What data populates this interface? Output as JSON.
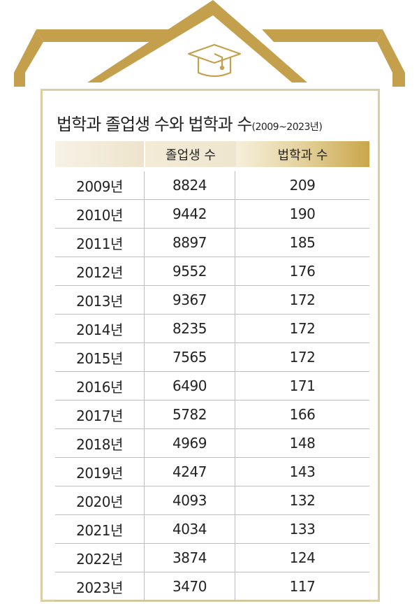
{
  "title": {
    "main": "법학과 졸업생 수와 법학과 수",
    "range": "(2009~2023년)"
  },
  "colors": {
    "gold": "#c4a04d",
    "card_border": "#d9cfa6",
    "row_line": "#bdbdbd"
  },
  "icons": {
    "roof": "house-roof-icon",
    "cap": "graduation-cap-icon"
  },
  "table": {
    "headers": [
      "",
      "졸업생 수",
      "법학과 수"
    ],
    "rows": [
      [
        "2009년",
        "8824",
        "209"
      ],
      [
        "2010년",
        "9442",
        "190"
      ],
      [
        "2011년",
        "8897",
        "185"
      ],
      [
        "2012년",
        "9552",
        "176"
      ],
      [
        "2013년",
        "9367",
        "172"
      ],
      [
        "2014년",
        "8235",
        "172"
      ],
      [
        "2015년",
        "7565",
        "172"
      ],
      [
        "2016년",
        "6490",
        "171"
      ],
      [
        "2017년",
        "5782",
        "166"
      ],
      [
        "2018년",
        "4969",
        "148"
      ],
      [
        "2019년",
        "4247",
        "143"
      ],
      [
        "2020년",
        "4093",
        "132"
      ],
      [
        "2021년",
        "4034",
        "133"
      ],
      [
        "2022년",
        "3874",
        "124"
      ],
      [
        "2023년",
        "3470",
        "117"
      ]
    ]
  }
}
